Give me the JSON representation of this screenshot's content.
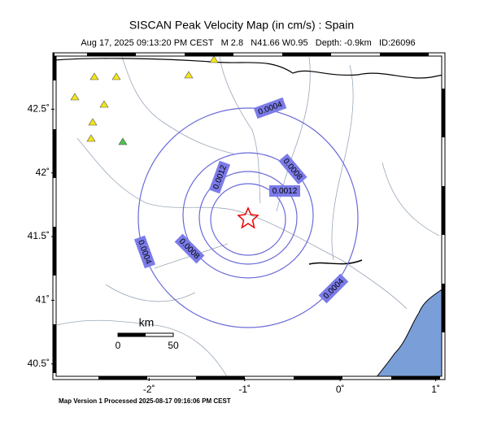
{
  "map": {
    "title": "SISCAN Peak Velocity Map (in cm/s) : Spain",
    "subtitle": "Aug 17, 2025 09:13:20 PM CEST   M 2.8   N41.66 W0.95   Depth: -0.9km   ID:26096",
    "footer": "Map Version 1 Processed 2025-08-17 09:16:06 PM CEST",
    "xlim": [
      -2.99,
      1.08
    ],
    "ylim": [
      40.39,
      42.93
    ],
    "xticks": [
      {
        "value": -2,
        "label": "-2˚"
      },
      {
        "value": -1,
        "label": "-1˚"
      },
      {
        "value": 0,
        "label": "0˚"
      },
      {
        "value": 1,
        "label": "1˚"
      }
    ],
    "yticks": [
      {
        "value": 40.5,
        "label": "40.5˚"
      },
      {
        "value": 41,
        "label": "41˚"
      },
      {
        "value": 41.5,
        "label": "41.5˚"
      },
      {
        "value": 42,
        "label": "42˚"
      },
      {
        "value": 42.5,
        "label": "42.5˚"
      }
    ],
    "contour_labels": [
      "0.0004",
      "0.0008",
      "0.0012",
      "0.0012",
      "0.0004",
      "0.0008",
      "0.0004"
    ],
    "scale_bar": {
      "unit": "km",
      "labels": [
        "0",
        "50"
      ]
    }
  }
}
